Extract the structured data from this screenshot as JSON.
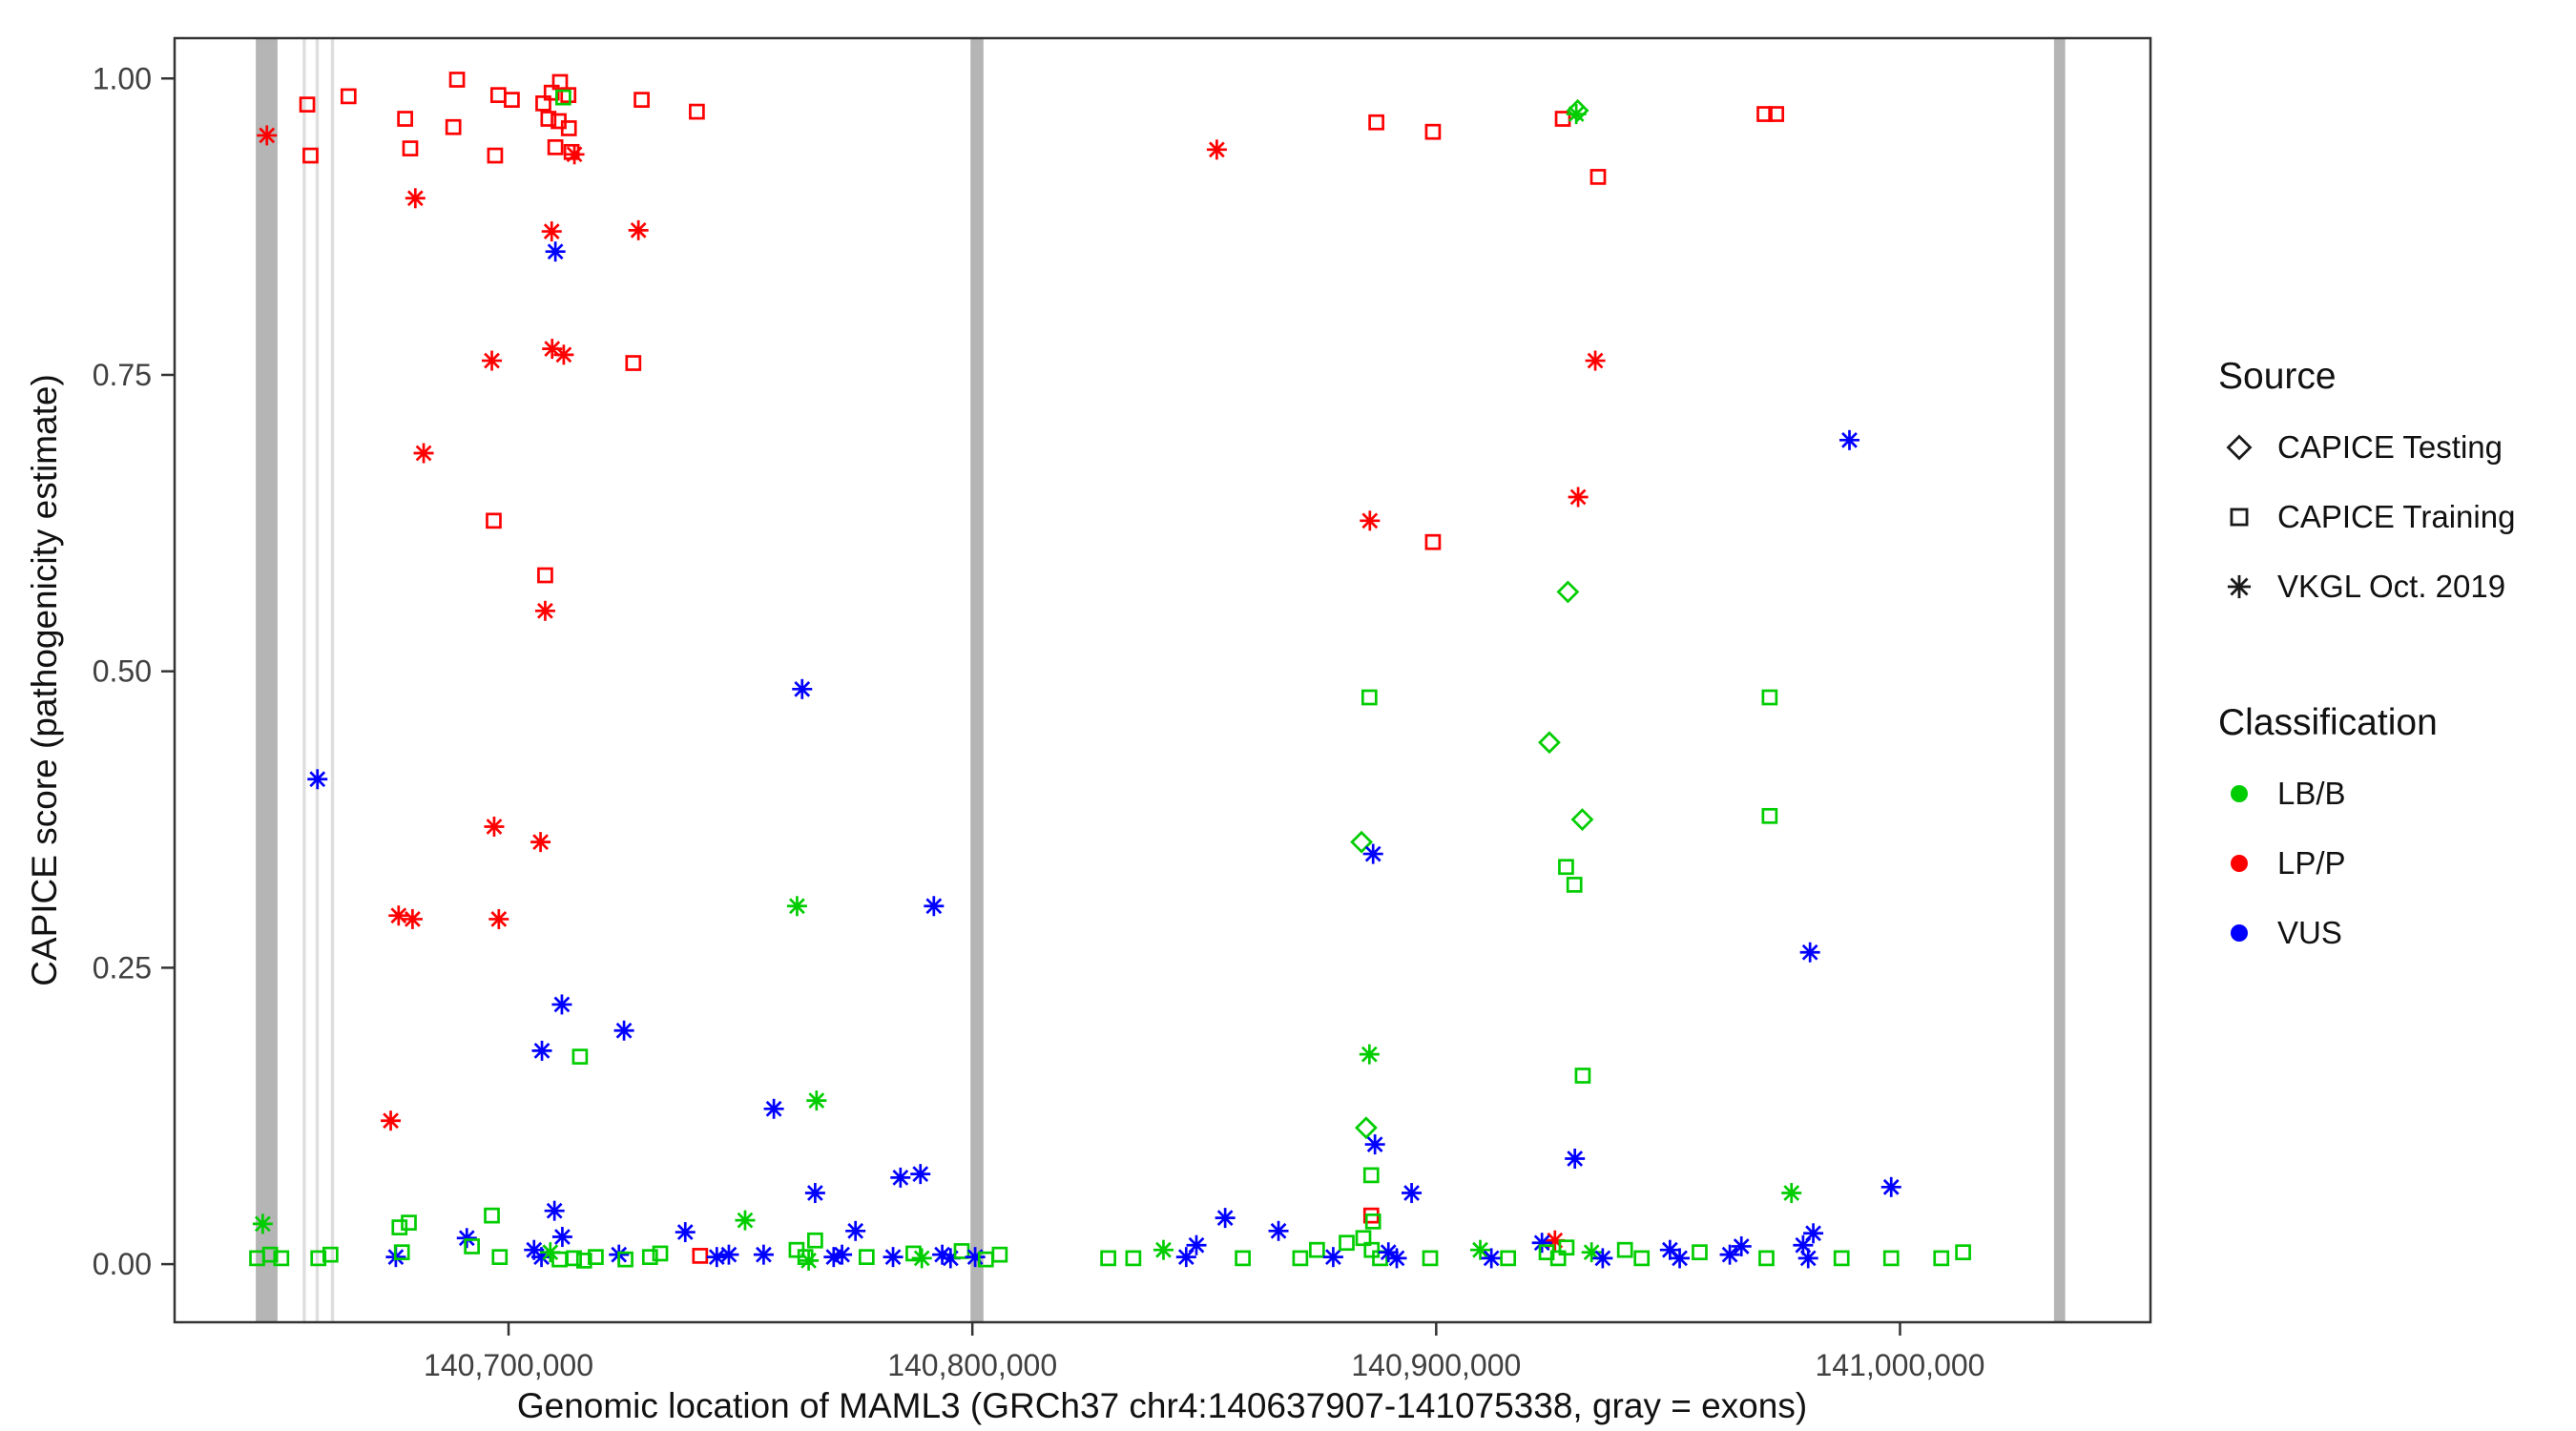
{
  "chart_data": {
    "type": "scatter",
    "title": "",
    "xlabel": "Genomic location of MAML3 (GRCh37 chr4:140637907-141075338, gray = exons)",
    "ylabel": "CAPICE score (pathogenicity estimate)",
    "xlim": [
      140628000,
      141054000
    ],
    "ylim": [
      -0.049,
      1.034
    ],
    "grid": false,
    "legend_position": "right",
    "x_ticks": [
      {
        "value": 140700000,
        "label": "140,700,000"
      },
      {
        "value": 140800000,
        "label": "140,800,000"
      },
      {
        "value": 140900000,
        "label": "140,900,000"
      },
      {
        "value": 141000000,
        "label": "141,000,000"
      }
    ],
    "y_ticks": [
      {
        "value": 0.0,
        "label": "0.00"
      },
      {
        "value": 0.25,
        "label": "0.25"
      },
      {
        "value": 0.5,
        "label": "0.50"
      },
      {
        "value": 0.75,
        "label": "0.75"
      },
      {
        "value": 1.0,
        "label": "1.00"
      }
    ],
    "legend": {
      "source": {
        "title": "Source",
        "items": [
          {
            "label": "CAPICE Testing",
            "marker": "diamond"
          },
          {
            "label": "CAPICE Training",
            "marker": "square"
          },
          {
            "label": "VKGL Oct. 2019",
            "marker": "asterisk"
          }
        ]
      },
      "classification": {
        "title": "Classification",
        "items": [
          {
            "label": "LB/B",
            "color": "#00CD00"
          },
          {
            "label": "LP/P",
            "color": "#FF0000"
          },
          {
            "label": "VUS",
            "color": "#0000FF"
          }
        ]
      }
    },
    "class_colors": {
      "LB/B": "#00CD00",
      "LP/P": "#FF0000",
      "VUS": "#0000FF"
    },
    "exon_colors": {
      "dark": "#b5b5b5",
      "light": "#dedede"
    },
    "exons": [
      {
        "start": 140645500,
        "end": 140650200,
        "shade": "dark"
      },
      {
        "start": 140655600,
        "end": 140656300,
        "shade": "light"
      },
      {
        "start": 140658400,
        "end": 140659100,
        "shade": "light"
      },
      {
        "start": 140661700,
        "end": 140662400,
        "shade": "light"
      },
      {
        "start": 140799600,
        "end": 140802400,
        "shade": "dark"
      },
      {
        "start": 141033200,
        "end": 141035600,
        "shade": "dark"
      }
    ],
    "points_format": [
      "marker(sq=square,di=diamond,as=asterisk)",
      "classification",
      "genomic_position",
      "capice_score"
    ],
    "points": [
      [
        "as",
        "LP/P",
        140647900,
        0.952
      ],
      [
        "sq",
        "LP/P",
        140656600,
        0.978
      ],
      [
        "sq",
        "LP/P",
        140657300,
        0.935
      ],
      [
        "sq",
        "LP/P",
        140665500,
        0.985
      ],
      [
        "sq",
        "LP/P",
        140677700,
        0.966
      ],
      [
        "sq",
        "LP/P",
        140678800,
        0.941
      ],
      [
        "sq",
        "LP/P",
        140688900,
        0.999
      ],
      [
        "sq",
        "LP/P",
        140688100,
        0.959
      ],
      [
        "sq",
        "LP/P",
        140697100,
        0.935
      ],
      [
        "sq",
        "LP/P",
        140697800,
        0.986
      ],
      [
        "sq",
        "LP/P",
        140700700,
        0.982
      ],
      [
        "sq",
        "LP/P",
        140707500,
        0.979
      ],
      [
        "sq",
        "LP/P",
        140709300,
        0.988
      ],
      [
        "sq",
        "LP/P",
        140711100,
        0.997
      ],
      [
        "sq",
        "LP/P",
        140712900,
        0.986
      ],
      [
        "sq",
        "LP/P",
        140708600,
        0.966
      ],
      [
        "sq",
        "LP/P",
        140710800,
        0.964
      ],
      [
        "sq",
        "LP/P",
        140713000,
        0.958
      ],
      [
        "sq",
        "LP/P",
        140710100,
        0.942
      ],
      [
        "sq",
        "LP/P",
        140713600,
        0.938
      ],
      [
        "as",
        "LP/P",
        140714200,
        0.936
      ],
      [
        "sq",
        "LB/B",
        140711800,
        0.984
      ],
      [
        "sq",
        "LP/P",
        140728700,
        0.982
      ],
      [
        "sq",
        "LP/P",
        140740600,
        0.972
      ],
      [
        "as",
        "LP/P",
        140679900,
        0.899
      ],
      [
        "as",
        "LP/P",
        140709300,
        0.871
      ],
      [
        "as",
        "LP/P",
        140728000,
        0.872
      ],
      [
        "as",
        "VUS",
        140710100,
        0.854
      ],
      [
        "as",
        "LP/P",
        140696400,
        0.762
      ],
      [
        "as",
        "LP/P",
        140709400,
        0.772
      ],
      [
        "as",
        "LP/P",
        140711900,
        0.767
      ],
      [
        "sq",
        "LP/P",
        140726900,
        0.76
      ],
      [
        "as",
        "LP/P",
        140681700,
        0.684
      ],
      [
        "sq",
        "LP/P",
        140696800,
        0.627
      ],
      [
        "sq",
        "LP/P",
        140707900,
        0.581
      ],
      [
        "as",
        "LP/P",
        140707900,
        0.551
      ],
      [
        "as",
        "VUS",
        140658800,
        0.409
      ],
      [
        "as",
        "LP/P",
        140696900,
        0.369
      ],
      [
        "as",
        "LP/P",
        140706900,
        0.356
      ],
      [
        "as",
        "LP/P",
        140676300,
        0.294
      ],
      [
        "as",
        "LP/P",
        140679300,
        0.291
      ],
      [
        "as",
        "LP/P",
        140697900,
        0.291
      ],
      [
        "as",
        "VUS",
        140763300,
        0.485
      ],
      [
        "as",
        "LB/B",
        140762200,
        0.302
      ],
      [
        "as",
        "VUS",
        140791700,
        0.302
      ],
      [
        "as",
        "VUS",
        140711500,
        0.219
      ],
      [
        "as",
        "VUS",
        140707200,
        0.18
      ],
      [
        "as",
        "VUS",
        140724900,
        0.197
      ],
      [
        "sq",
        "LB/B",
        140715400,
        0.175
      ],
      [
        "as",
        "VUS",
        140757200,
        0.131
      ],
      [
        "as",
        "LB/B",
        140766400,
        0.138
      ],
      [
        "as",
        "LP/P",
        140674600,
        0.121
      ],
      [
        "as",
        "VUS",
        140766100,
        0.06
      ],
      [
        "as",
        "VUS",
        140784500,
        0.073
      ],
      [
        "as",
        "VUS",
        140788800,
        0.076
      ],
      [
        "as",
        "VUS",
        140774800,
        0.028
      ],
      [
        "as",
        "VUS",
        140738100,
        0.027
      ],
      [
        "as",
        "VUS",
        140709900,
        0.045
      ],
      [
        "sq",
        "LB/B",
        140696400,
        0.041
      ],
      [
        "sq",
        "LB/B",
        140676500,
        0.031
      ],
      [
        "sq",
        "LB/B",
        140678500,
        0.035
      ],
      [
        "as",
        "LB/B",
        140647000,
        0.034
      ],
      [
        "as",
        "LB/B",
        140751000,
        0.037
      ],
      [
        "sq",
        "LB/B",
        140766100,
        0.02
      ],
      [
        "sq",
        "LB/B",
        140645800,
        0.005
      ],
      [
        "sq",
        "LB/B",
        140648600,
        0.008
      ],
      [
        "sq",
        "LB/B",
        140651000,
        0.005
      ],
      [
        "sq",
        "LB/B",
        140659000,
        0.005
      ],
      [
        "sq",
        "LB/B",
        140661600,
        0.008
      ],
      [
        "as",
        "VUS",
        140675700,
        0.006
      ],
      [
        "sq",
        "LB/B",
        140677000,
        0.01
      ],
      [
        "as",
        "VUS",
        140691000,
        0.022
      ],
      [
        "sq",
        "LB/B",
        140692100,
        0.015
      ],
      [
        "sq",
        "LB/B",
        140698100,
        0.006
      ],
      [
        "as",
        "VUS",
        140705500,
        0.012
      ],
      [
        "as",
        "VUS",
        140707100,
        0.006
      ],
      [
        "as",
        "LB/B",
        140709000,
        0.01
      ],
      [
        "sq",
        "LB/B",
        140711000,
        0.004
      ],
      [
        "as",
        "VUS",
        140711600,
        0.023
      ],
      [
        "sq",
        "LB/B",
        140714100,
        0.005
      ],
      [
        "sq",
        "LB/B",
        140716300,
        0.003
      ],
      [
        "sq",
        "LB/B",
        140718800,
        0.006
      ],
      [
        "as",
        "VUS",
        140723800,
        0.008
      ],
      [
        "sq",
        "LB/B",
        140725200,
        0.004
      ],
      [
        "sq",
        "LB/B",
        140730500,
        0.006
      ],
      [
        "sq",
        "LB/B",
        140732700,
        0.009
      ],
      [
        "sq",
        "LP/P",
        140741300,
        0.007
      ],
      [
        "as",
        "VUS",
        140744900,
        0.006
      ],
      [
        "as",
        "VUS",
        140747500,
        0.008
      ],
      [
        "as",
        "VUS",
        140755000,
        0.008
      ],
      [
        "sq",
        "LB/B",
        140762100,
        0.012
      ],
      [
        "sq",
        "LB/B",
        140764000,
        0.006
      ],
      [
        "as",
        "LB/B",
        140764700,
        0.003
      ],
      [
        "as",
        "VUS",
        140770100,
        0.006
      ],
      [
        "as",
        "VUS",
        140771900,
        0.008
      ],
      [
        "sq",
        "LB/B",
        140777200,
        0.006
      ],
      [
        "as",
        "VUS",
        140782900,
        0.006
      ],
      [
        "sq",
        "LB/B",
        140787300,
        0.009
      ],
      [
        "as",
        "LB/B",
        140789100,
        0.005
      ],
      [
        "as",
        "VUS",
        140793500,
        0.008
      ],
      [
        "as",
        "VUS",
        140795300,
        0.005
      ],
      [
        "sq",
        "LB/B",
        140797700,
        0.011
      ],
      [
        "as",
        "VUS",
        140800600,
        0.006
      ],
      [
        "sq",
        "LB/B",
        140802900,
        0.004
      ],
      [
        "sq",
        "LB/B",
        140805900,
        0.008
      ],
      [
        "as",
        "LP/P",
        140852700,
        0.94
      ],
      [
        "sq",
        "LP/P",
        140887100,
        0.963
      ],
      [
        "sq",
        "LP/P",
        140899300,
        0.955
      ],
      [
        "sq",
        "LP/P",
        140927300,
        0.966
      ],
      [
        "di",
        "LB/B",
        140930500,
        0.973
      ],
      [
        "as",
        "LB/B",
        140930200,
        0.97
      ],
      [
        "sq",
        "LP/P",
        140934900,
        0.917
      ],
      [
        "sq",
        "LP/P",
        140970800,
        0.97
      ],
      [
        "sq",
        "LP/P",
        140973300,
        0.97
      ],
      [
        "as",
        "LP/P",
        140934300,
        0.762
      ],
      [
        "as",
        "VUS",
        140989100,
        0.695
      ],
      [
        "as",
        "LP/P",
        140930600,
        0.647
      ],
      [
        "as",
        "LP/P",
        140885700,
        0.627
      ],
      [
        "sq",
        "LP/P",
        140899300,
        0.609
      ],
      [
        "di",
        "LB/B",
        140928400,
        0.567
      ],
      [
        "sq",
        "LB/B",
        140885600,
        0.478
      ],
      [
        "sq",
        "LB/B",
        140971900,
        0.478
      ],
      [
        "di",
        "LB/B",
        140924400,
        0.44
      ],
      [
        "di",
        "LB/B",
        140931500,
        0.375
      ],
      [
        "sq",
        "LB/B",
        140971900,
        0.378
      ],
      [
        "di",
        "LB/B",
        140883900,
        0.356
      ],
      [
        "as",
        "VUS",
        140886400,
        0.346
      ],
      [
        "sq",
        "LB/B",
        140928000,
        0.335
      ],
      [
        "sq",
        "LB/B",
        140929800,
        0.32
      ],
      [
        "as",
        "VUS",
        140980600,
        0.263
      ],
      [
        "as",
        "LB/B",
        140885600,
        0.177
      ],
      [
        "sq",
        "LB/B",
        140931600,
        0.159
      ],
      [
        "di",
        "LB/B",
        140884900,
        0.115
      ],
      [
        "as",
        "VUS",
        140886800,
        0.101
      ],
      [
        "as",
        "VUS",
        140929900,
        0.089
      ],
      [
        "sq",
        "LB/B",
        140886000,
        0.075
      ],
      [
        "as",
        "VUS",
        140894700,
        0.06
      ],
      [
        "as",
        "VUS",
        140998100,
        0.065
      ],
      [
        "as",
        "LB/B",
        140976600,
        0.06
      ],
      [
        "sq",
        "LP/P",
        140886000,
        0.041
      ],
      [
        "sq",
        "LB/B",
        140886400,
        0.036
      ],
      [
        "as",
        "VUS",
        140854500,
        0.039
      ],
      [
        "as",
        "VUS",
        140866000,
        0.028
      ],
      [
        "as",
        "LP/P",
        140925600,
        0.02
      ],
      [
        "sq",
        "LB/B",
        140829300,
        0.005
      ],
      [
        "sq",
        "LB/B",
        140834700,
        0.005
      ],
      [
        "as",
        "LB/B",
        140841200,
        0.012
      ],
      [
        "as",
        "VUS",
        140846100,
        0.006
      ],
      [
        "as",
        "VUS",
        140848300,
        0.016
      ],
      [
        "sq",
        "LB/B",
        140858300,
        0.005
      ],
      [
        "sq",
        "LB/B",
        140870700,
        0.005
      ],
      [
        "sq",
        "LB/B",
        140874300,
        0.012
      ],
      [
        "as",
        "VUS",
        140877800,
        0.006
      ],
      [
        "sq",
        "LB/B",
        140880700,
        0.018
      ],
      [
        "sq",
        "LB/B",
        140884300,
        0.022
      ],
      [
        "sq",
        "LB/B",
        140886100,
        0.012
      ],
      [
        "sq",
        "LB/B",
        140887900,
        0.005
      ],
      [
        "as",
        "VUS",
        140889700,
        0.01
      ],
      [
        "as",
        "VUS",
        140891500,
        0.005
      ],
      [
        "sq",
        "LB/B",
        140898700,
        0.005
      ],
      [
        "as",
        "LB/B",
        140909500,
        0.012
      ],
      [
        "as",
        "VUS",
        140911900,
        0.005
      ],
      [
        "sq",
        "LB/B",
        140915500,
        0.005
      ],
      [
        "as",
        "VUS",
        140922800,
        0.018
      ],
      [
        "sq",
        "LB/B",
        140923800,
        0.01
      ],
      [
        "sq",
        "LB/B",
        140926300,
        0.005
      ],
      [
        "sq",
        "LB/B",
        140928100,
        0.014
      ],
      [
        "as",
        "LB/B",
        140933500,
        0.01
      ],
      [
        "as",
        "VUS",
        140935900,
        0.005
      ],
      [
        "sq",
        "LB/B",
        140940700,
        0.012
      ],
      [
        "sq",
        "LB/B",
        140944300,
        0.005
      ],
      [
        "as",
        "VUS",
        140950400,
        0.012
      ],
      [
        "as",
        "VUS",
        140952500,
        0.005
      ],
      [
        "sq",
        "LB/B",
        140956800,
        0.01
      ],
      [
        "as",
        "VUS",
        140963300,
        0.008
      ],
      [
        "as",
        "VUS",
        140965800,
        0.015
      ],
      [
        "sq",
        "LB/B",
        140971200,
        0.005
      ],
      [
        "as",
        "VUS",
        140979100,
        0.016
      ],
      [
        "as",
        "VUS",
        140981300,
        0.026
      ],
      [
        "as",
        "VUS",
        140980200,
        0.005
      ],
      [
        "sq",
        "LB/B",
        140987400,
        0.005
      ],
      [
        "sq",
        "LB/B",
        140998100,
        0.005
      ],
      [
        "sq",
        "LB/B",
        141008900,
        0.005
      ],
      [
        "sq",
        "LB/B",
        141013600,
        0.01
      ]
    ]
  }
}
